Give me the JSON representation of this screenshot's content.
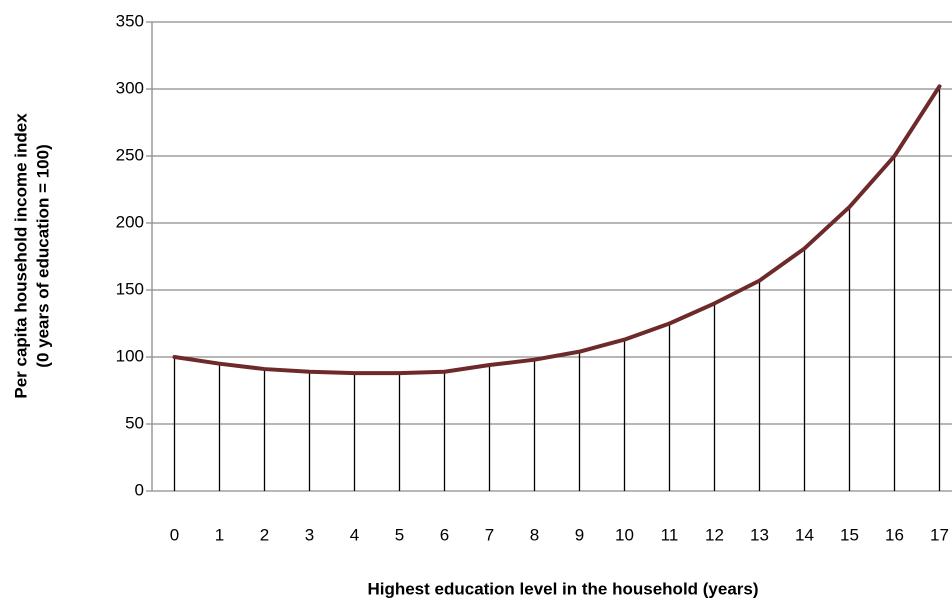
{
  "chart_data": {
    "type": "line",
    "x_label": "Highest education level in the household (years)",
    "y_label": [
      "Per capita household income index",
      "(0 years of education = 100)"
    ],
    "categories": [
      "0",
      "1",
      "2",
      "3",
      "4",
      "5",
      "6",
      "7",
      "8",
      "9",
      "10",
      "11",
      "12",
      "13",
      "14",
      "15",
      "16",
      "17"
    ],
    "values": [
      100,
      95,
      91,
      89,
      88,
      88,
      89,
      94,
      98,
      104,
      113,
      125,
      140,
      157,
      181,
      212,
      250,
      302
    ],
    "color": "#6e2a2a",
    "ylim": [
      0,
      350
    ],
    "yticks": [
      0,
      50,
      100,
      150,
      200,
      250,
      300,
      350
    ],
    "grid": true,
    "drop_lines": true
  }
}
